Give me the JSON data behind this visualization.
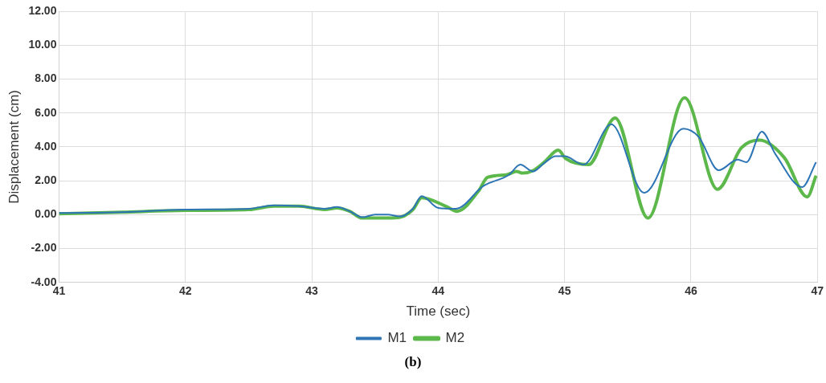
{
  "chart_data": {
    "type": "line",
    "xlabel": "Time (sec)",
    "ylabel": "Displacement (cm)",
    "xlim": [
      41,
      47
    ],
    "xticks": [
      41,
      42,
      43,
      44,
      45,
      46,
      47
    ],
    "ylim": [
      -4,
      12
    ],
    "yticks": [
      {
        "value": -4,
        "label": "-4.00"
      },
      {
        "value": -2,
        "label": "-2.00"
      },
      {
        "value": 0,
        "label": "0.00"
      },
      {
        "value": 2,
        "label": "2.00"
      },
      {
        "value": 4,
        "label": "4.00"
      },
      {
        "value": 6,
        "label": "6.00"
      },
      {
        "value": 8,
        "label": "8.00"
      },
      {
        "value": 10,
        "label": "10.00"
      },
      {
        "value": 12,
        "label": "12.00"
      }
    ],
    "grid": true,
    "legend": "bottom",
    "marker": "none",
    "line_style": "solid",
    "annotations": [
      "(b)"
    ],
    "series": [
      {
        "name": "M1",
        "color": "#2e75b6",
        "x": [
          41.0,
          41.5,
          42.0,
          42.5,
          42.7,
          42.9,
          43.1,
          43.2,
          43.3,
          43.4,
          43.5,
          43.6,
          43.7,
          43.8,
          43.87,
          44.0,
          44.14,
          44.36,
          44.56,
          44.65,
          44.75,
          44.84,
          44.93,
          45.0,
          45.15,
          45.37,
          45.63,
          45.94,
          46.06,
          46.22,
          46.37,
          46.44,
          46.56,
          46.67,
          46.88,
          46.99
        ],
        "values": [
          0.1,
          0.15,
          0.3,
          0.35,
          0.55,
          0.5,
          0.35,
          0.45,
          0.2,
          -0.15,
          0.0,
          0.0,
          -0.1,
          0.35,
          1.09,
          0.4,
          0.35,
          1.7,
          2.35,
          2.95,
          2.55,
          3.05,
          3.45,
          3.45,
          2.95,
          5.33,
          1.28,
          5.07,
          4.6,
          2.62,
          3.25,
          3.1,
          4.9,
          3.55,
          1.63,
          3.1
        ]
      },
      {
        "name": "M2",
        "color": "#5cb84a",
        "x": [
          41.0,
          41.5,
          42.0,
          42.5,
          42.7,
          42.9,
          43.1,
          43.2,
          43.3,
          43.4,
          43.5,
          43.6,
          43.7,
          43.8,
          43.87,
          44.06,
          44.15,
          44.32,
          44.39,
          44.54,
          44.62,
          44.67,
          44.75,
          44.84,
          44.95,
          45.01,
          45.19,
          45.4,
          45.66,
          45.95,
          46.21,
          46.4,
          46.54,
          46.74,
          46.92,
          46.99
        ],
        "values": [
          0.05,
          0.15,
          0.25,
          0.3,
          0.5,
          0.5,
          0.3,
          0.4,
          0.2,
          -0.2,
          -0.2,
          -0.2,
          -0.15,
          0.3,
          1.0,
          0.5,
          0.2,
          1.4,
          2.2,
          2.35,
          2.55,
          2.45,
          2.6,
          3.1,
          3.8,
          3.3,
          2.95,
          5.7,
          -0.2,
          6.9,
          1.5,
          3.95,
          4.4,
          3.35,
          1.05,
          2.3
        ]
      }
    ]
  }
}
